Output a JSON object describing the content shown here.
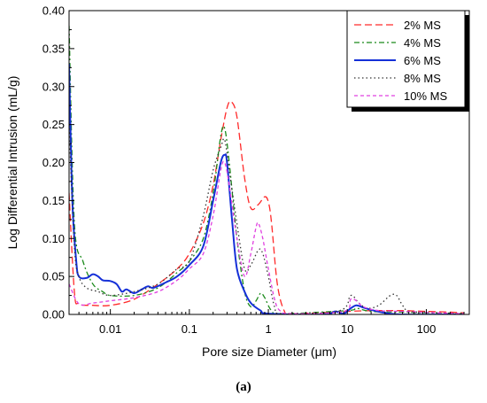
{
  "chart_data": {
    "type": "line",
    "xlabel": "Pore size Diameter (μm)",
    "ylabel": "Log Differential Intrusion (mL/g)",
    "xscale": "log",
    "xlim": [
      0.003,
      350
    ],
    "ylim": [
      0,
      0.4
    ],
    "x_ticks": [
      0.01,
      0.1,
      1,
      10,
      100
    ],
    "x_tick_labels": [
      "0.01",
      "0.1",
      "1",
      "10",
      "100"
    ],
    "y_ticks": [
      0,
      0.05,
      0.1,
      0.15,
      0.2,
      0.25,
      0.3,
      0.35,
      0.4
    ],
    "y_tick_labels": [
      "0.00",
      "0.05",
      "0.10",
      "0.15",
      "0.20",
      "0.25",
      "0.30",
      "0.35",
      "0.40"
    ],
    "grid": false,
    "legend_position": "top-right",
    "caption": "(a)",
    "series": [
      {
        "name": "2% MS",
        "color": "#ff2a2a",
        "dash": "dashed",
        "points": [
          [
            0.003,
            0.16
          ],
          [
            0.0035,
            0.03
          ],
          [
            0.004,
            0.014
          ],
          [
            0.006,
            0.012
          ],
          [
            0.01,
            0.012
          ],
          [
            0.02,
            0.02
          ],
          [
            0.04,
            0.04
          ],
          [
            0.07,
            0.06
          ],
          [
            0.1,
            0.08
          ],
          [
            0.15,
            0.12
          ],
          [
            0.2,
            0.17
          ],
          [
            0.25,
            0.23
          ],
          [
            0.3,
            0.272
          ],
          [
            0.34,
            0.28
          ],
          [
            0.4,
            0.26
          ],
          [
            0.5,
            0.18
          ],
          [
            0.6,
            0.14
          ],
          [
            0.75,
            0.145
          ],
          [
            0.9,
            0.155
          ],
          [
            1.0,
            0.148
          ],
          [
            1.1,
            0.12
          ],
          [
            1.3,
            0.04
          ],
          [
            1.6,
            0.004
          ],
          [
            2,
            0.001
          ],
          [
            10,
            0.004
          ],
          [
            20,
            0.005
          ],
          [
            50,
            0.005
          ],
          [
            100,
            0.004
          ],
          [
            200,
            0.003
          ],
          [
            300,
            0.002
          ]
        ]
      },
      {
        "name": "4% MS",
        "color": "#1a8a1a",
        "dash": "dashdot",
        "points": [
          [
            0.003,
            0.38
          ],
          [
            0.0035,
            0.12
          ],
          [
            0.0045,
            0.07
          ],
          [
            0.006,
            0.04
          ],
          [
            0.008,
            0.03
          ],
          [
            0.01,
            0.025
          ],
          [
            0.02,
            0.025
          ],
          [
            0.04,
            0.035
          ],
          [
            0.07,
            0.055
          ],
          [
            0.1,
            0.07
          ],
          [
            0.15,
            0.1
          ],
          [
            0.2,
            0.16
          ],
          [
            0.25,
            0.235
          ],
          [
            0.28,
            0.245
          ],
          [
            0.32,
            0.2
          ],
          [
            0.4,
            0.1
          ],
          [
            0.5,
            0.03
          ],
          [
            0.6,
            0.01
          ],
          [
            0.7,
            0.018
          ],
          [
            0.8,
            0.028
          ],
          [
            0.9,
            0.022
          ],
          [
            1.1,
            0.005
          ],
          [
            1.5,
            0.001
          ],
          [
            10,
            0.005
          ],
          [
            13,
            0.008
          ],
          [
            20,
            0.004
          ],
          [
            50,
            0.003
          ],
          [
            300,
            0.001
          ]
        ]
      },
      {
        "name": "6% MS",
        "color": "#1530d8",
        "dash": "solid",
        "points": [
          [
            0.003,
            0.33
          ],
          [
            0.0033,
            0.15
          ],
          [
            0.0037,
            0.07
          ],
          [
            0.004,
            0.05
          ],
          [
            0.005,
            0.048
          ],
          [
            0.006,
            0.053
          ],
          [
            0.007,
            0.05
          ],
          [
            0.008,
            0.045
          ],
          [
            0.01,
            0.044
          ],
          [
            0.012,
            0.04
          ],
          [
            0.014,
            0.03
          ],
          [
            0.016,
            0.033
          ],
          [
            0.02,
            0.028
          ],
          [
            0.025,
            0.033
          ],
          [
            0.03,
            0.037
          ],
          [
            0.035,
            0.035
          ],
          [
            0.05,
            0.042
          ],
          [
            0.07,
            0.05
          ],
          [
            0.1,
            0.065
          ],
          [
            0.15,
            0.09
          ],
          [
            0.2,
            0.15
          ],
          [
            0.25,
            0.2
          ],
          [
            0.28,
            0.21
          ],
          [
            0.3,
            0.2
          ],
          [
            0.35,
            0.12
          ],
          [
            0.4,
            0.06
          ],
          [
            0.5,
            0.03
          ],
          [
            0.6,
            0.015
          ],
          [
            0.8,
            0.005
          ],
          [
            1.0,
            0.001
          ],
          [
            5,
            0.0
          ],
          [
            7,
            0.004
          ],
          [
            9,
            0.001
          ],
          [
            11,
            0.008
          ],
          [
            13,
            0.012
          ],
          [
            16,
            0.009
          ],
          [
            20,
            0.006
          ],
          [
            30,
            0.002
          ],
          [
            50,
            0.0
          ],
          [
            300,
            0.0
          ]
        ]
      },
      {
        "name": "8% MS",
        "color": "#333333",
        "dash": "dotted",
        "points": [
          [
            0.003,
            0.25
          ],
          [
            0.0035,
            0.09
          ],
          [
            0.004,
            0.05
          ],
          [
            0.005,
            0.035
          ],
          [
            0.007,
            0.03
          ],
          [
            0.01,
            0.025
          ],
          [
            0.02,
            0.03
          ],
          [
            0.04,
            0.04
          ],
          [
            0.07,
            0.06
          ],
          [
            0.1,
            0.07
          ],
          [
            0.15,
            0.13
          ],
          [
            0.2,
            0.19
          ],
          [
            0.25,
            0.22
          ],
          [
            0.28,
            0.23
          ],
          [
            0.32,
            0.19
          ],
          [
            0.4,
            0.12
          ],
          [
            0.5,
            0.06
          ],
          [
            0.6,
            0.065
          ],
          [
            0.75,
            0.085
          ],
          [
            0.85,
            0.08
          ],
          [
            1.0,
            0.05
          ],
          [
            1.2,
            0.01
          ],
          [
            1.5,
            0.001
          ],
          [
            8,
            0.005
          ],
          [
            11,
            0.025
          ],
          [
            14,
            0.015
          ],
          [
            18,
            0.008
          ],
          [
            25,
            0.012
          ],
          [
            35,
            0.025
          ],
          [
            42,
            0.025
          ],
          [
            50,
            0.012
          ],
          [
            60,
            0.004
          ],
          [
            100,
            0.003
          ],
          [
            300,
            0.001
          ]
        ]
      },
      {
        "name": "10% MS",
        "color": "#e040e0",
        "dash": "shortdash",
        "points": [
          [
            0.003,
            0.04
          ],
          [
            0.004,
            0.014
          ],
          [
            0.006,
            0.015
          ],
          [
            0.01,
            0.018
          ],
          [
            0.02,
            0.022
          ],
          [
            0.04,
            0.03
          ],
          [
            0.07,
            0.045
          ],
          [
            0.1,
            0.06
          ],
          [
            0.15,
            0.08
          ],
          [
            0.2,
            0.13
          ],
          [
            0.25,
            0.19
          ],
          [
            0.28,
            0.2
          ],
          [
            0.32,
            0.17
          ],
          [
            0.4,
            0.1
          ],
          [
            0.5,
            0.05
          ],
          [
            0.6,
            0.08
          ],
          [
            0.7,
            0.115
          ],
          [
            0.75,
            0.12
          ],
          [
            0.85,
            0.1
          ],
          [
            1.0,
            0.06
          ],
          [
            1.2,
            0.02
          ],
          [
            1.4,
            0.005
          ],
          [
            2,
            0.001
          ],
          [
            9,
            0.004
          ],
          [
            11,
            0.02
          ],
          [
            13,
            0.018
          ],
          [
            16,
            0.01
          ],
          [
            25,
            0.005
          ],
          [
            50,
            0.004
          ],
          [
            150,
            0.002
          ],
          [
            300,
            0.001
          ]
        ]
      }
    ]
  }
}
